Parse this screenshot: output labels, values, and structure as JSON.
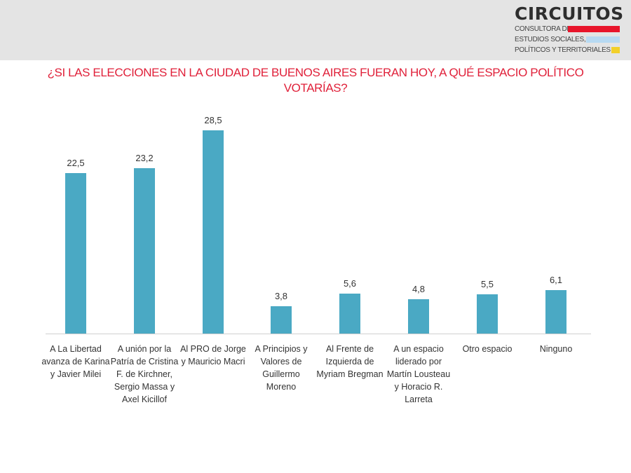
{
  "header": {
    "logo": {
      "name": "CIRCUITOS",
      "lines": [
        "CONSULTORA DE",
        "ESTUDIOS SOCIALES,",
        "POLÍTICOS Y TERRITORIALES"
      ],
      "swatch_colors": [
        "#e8152b",
        "#b7d9f2",
        "#f2d02a"
      ]
    }
  },
  "title": "¿SI LAS ELECCIONES EN LA CIUDAD DE BUENOS AIRES FUERAN HOY, A QUÉ ESPACIO POLÍTICO VOTARÍAS?",
  "colors": {
    "bar": "#4aa9c4",
    "title": "#e0213a"
  },
  "chart_data": {
    "type": "bar",
    "title": "¿SI LAS ELECCIONES EN LA CIUDAD DE BUENOS AIRES FUERAN HOY, A QUÉ ESPACIO POLÍTICO VOTARÍAS?",
    "categories": [
      "A La Libertad avanza de Karina y Javier Milei",
      "A unión por la Patría de Cristina F. de Kirchner, Sergio Massa y Axel Kicillof",
      "Al PRO de Jorge y Mauricio Macri",
      "A Principios y Valores de Guillermo Moreno",
      "Al Frente de Izquierda de Myriam Bregman",
      "A un espacio liderado por Martín Lousteau y Horacio R. Larreta",
      "Otro espacio",
      "Ninguno"
    ],
    "values": [
      22.5,
      23.2,
      28.5,
      3.8,
      5.6,
      4.8,
      5.5,
      6.1
    ],
    "value_labels": [
      "22,5",
      "23,2",
      "28,5",
      "3,8",
      "5,6",
      "4,8",
      "5,5",
      "6,1"
    ],
    "xlabel": "",
    "ylabel": "",
    "grid": false,
    "legend": null
  }
}
